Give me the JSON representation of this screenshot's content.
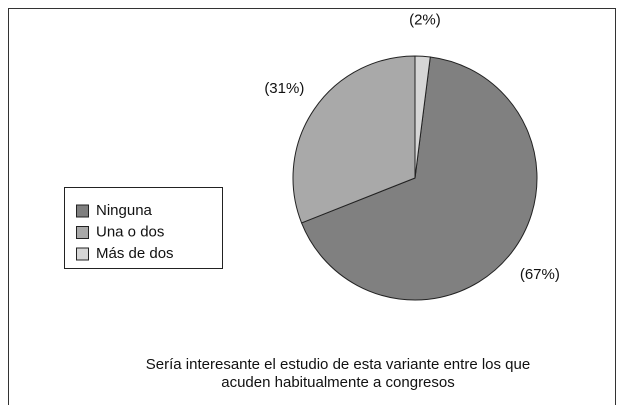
{
  "chart_data": {
    "type": "pie",
    "categories": [
      "Ninguna",
      "Una o dos",
      "Más de dos"
    ],
    "values": [
      67,
      31,
      2
    ],
    "value_labels": [
      "(67%)",
      "(31%)",
      "(2%)"
    ],
    "colors": [
      "#808080",
      "#a9a9a9",
      "#d6d6d6"
    ],
    "legend": "left",
    "caption": [
      "Sería interesante el estudio de esta variante entre los que",
      "acuden habitualmente a congresos"
    ]
  }
}
